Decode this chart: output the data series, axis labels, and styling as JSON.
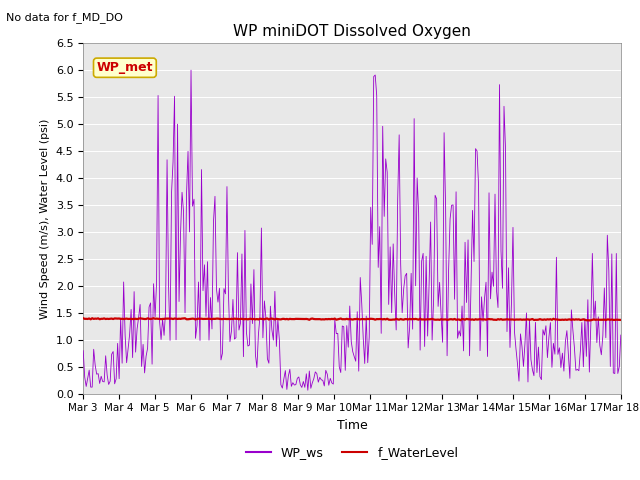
{
  "title": "WP miniDOT Dissolved Oxygen",
  "top_left_text": "No data for f_MD_DO",
  "annotation_box_text": "WP_met",
  "xlabel": "Time",
  "ylabel": "Wind Speed (m/s), Water Level (psi)",
  "ylim": [
    0.0,
    6.5
  ],
  "yticks": [
    0.0,
    0.5,
    1.0,
    1.5,
    2.0,
    2.5,
    3.0,
    3.5,
    4.0,
    4.5,
    5.0,
    5.5,
    6.0,
    6.5
  ],
  "xtick_labels": [
    "Mar 3",
    "Mar 4",
    "Mar 5",
    "Mar 6",
    "Mar 7",
    "Mar 8",
    "Mar 9",
    "Mar 10",
    "Mar 11",
    "Mar 12",
    "Mar 13",
    "Mar 14",
    "Mar 15",
    "Mar 16",
    "Mar 17",
    "Mar 18"
  ],
  "legend_entries": [
    "WP_ws",
    "f_WaterLevel"
  ],
  "line_wp_color": "#9900cc",
  "line_wl_color": "#cc0000",
  "bg_color": "#e8e8e8",
  "annotation_box_facecolor": "#ffffcc",
  "annotation_box_edgecolor": "#ccaa00",
  "annotation_text_color": "#cc0000",
  "water_level_value": 1.38
}
